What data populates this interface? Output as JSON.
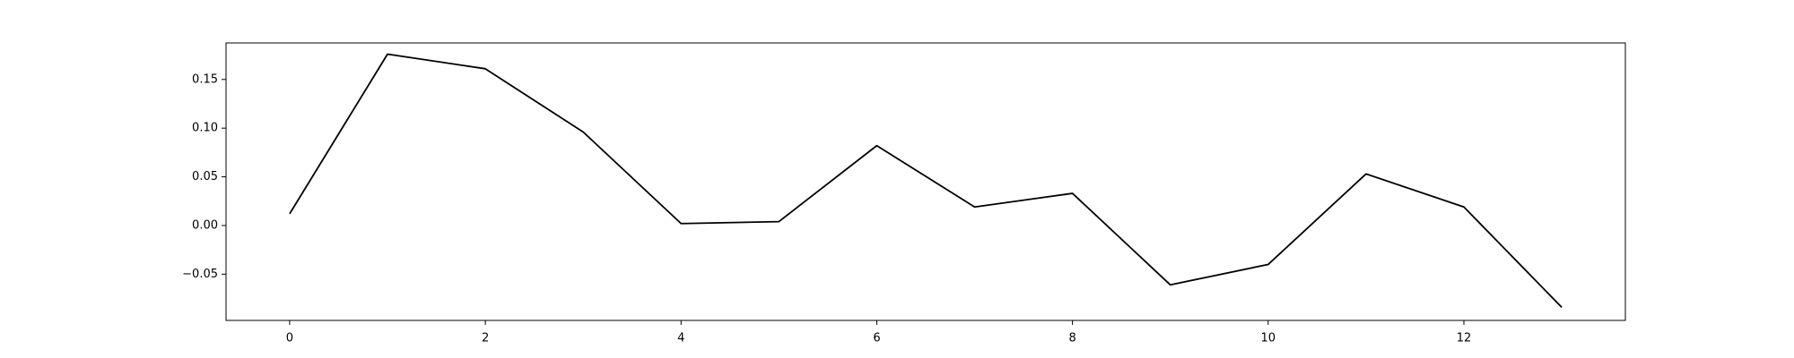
{
  "chart_data": {
    "type": "line",
    "title": "",
    "xlabel": "",
    "ylabel": "",
    "xlim": [
      -0.65,
      13.65
    ],
    "ylim": [
      -0.0975,
      0.1875
    ],
    "grid": false,
    "legend": "none",
    "x_ticks": [
      0,
      2,
      4,
      6,
      8,
      10,
      12
    ],
    "x_tick_labels": [
      "0",
      "2",
      "4",
      "6",
      "8",
      "10",
      "12"
    ],
    "y_ticks": [
      -0.05,
      0.0,
      0.05,
      0.1,
      0.15
    ],
    "y_tick_labels": [
      "−0.05",
      "0.00",
      "0.05",
      "0.10",
      "0.15"
    ],
    "series": [
      {
        "color": "#000000",
        "x": [
          0,
          1,
          2,
          3,
          4,
          5,
          6,
          7,
          8,
          9,
          10,
          11,
          12,
          13
        ],
        "values": [
          0.012,
          0.176,
          0.161,
          0.096,
          0.002,
          0.004,
          0.082,
          0.019,
          0.033,
          -0.061,
          -0.04,
          0.053,
          0.019,
          -0.084
        ]
      }
    ]
  }
}
